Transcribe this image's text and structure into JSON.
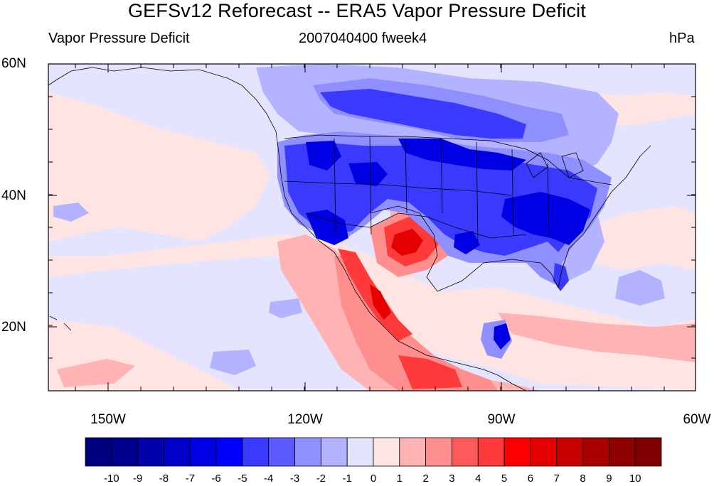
{
  "title": "GEFSv12 Reforecast -- ERA5 Vapor Pressure Deficit",
  "left_subtitle": "Vapor Pressure Deficit",
  "center_subtitle": "2007040400 fweek4",
  "right_subtitle": "hPa",
  "lon_labels": [
    "150W",
    "120W",
    "90W",
    "60W"
  ],
  "lat_labels": [
    "60N",
    "40N",
    "20N"
  ],
  "colorbar": {
    "labels": [
      "-10",
      "-9",
      "-8",
      "-7",
      "-6",
      "-5",
      "-4",
      "-3",
      "-2",
      "-1",
      "0",
      "1",
      "2",
      "3",
      "4",
      "5",
      "6",
      "7",
      "8",
      "9",
      "10"
    ],
    "colors": [
      "#00007f",
      "#00008f",
      "#0000a8",
      "#0000c8",
      "#0000e4",
      "#0000ff",
      "#3a3aff",
      "#5a5aff",
      "#8f8fff",
      "#b3b3ff",
      "#e4e4ff",
      "#ffe4e4",
      "#ffb3b3",
      "#ff8f8f",
      "#ff5a5a",
      "#ff3a3a",
      "#ff0000",
      "#e40000",
      "#c80000",
      "#a80000",
      "#8f0000",
      "#7f0000"
    ]
  },
  "map_colors": {
    "background": "#e4e4ff",
    "pink": "#ffe4e4",
    "light_blue": "#b3b3ff",
    "mid_blue": "#8f8fff",
    "blue": "#3a3aff",
    "deep_blue": "#0000e4",
    "salmon": "#ffb3b3",
    "red_light": "#ff8f8f",
    "red": "#ff3a3a",
    "deep_red": "#e40000"
  }
}
